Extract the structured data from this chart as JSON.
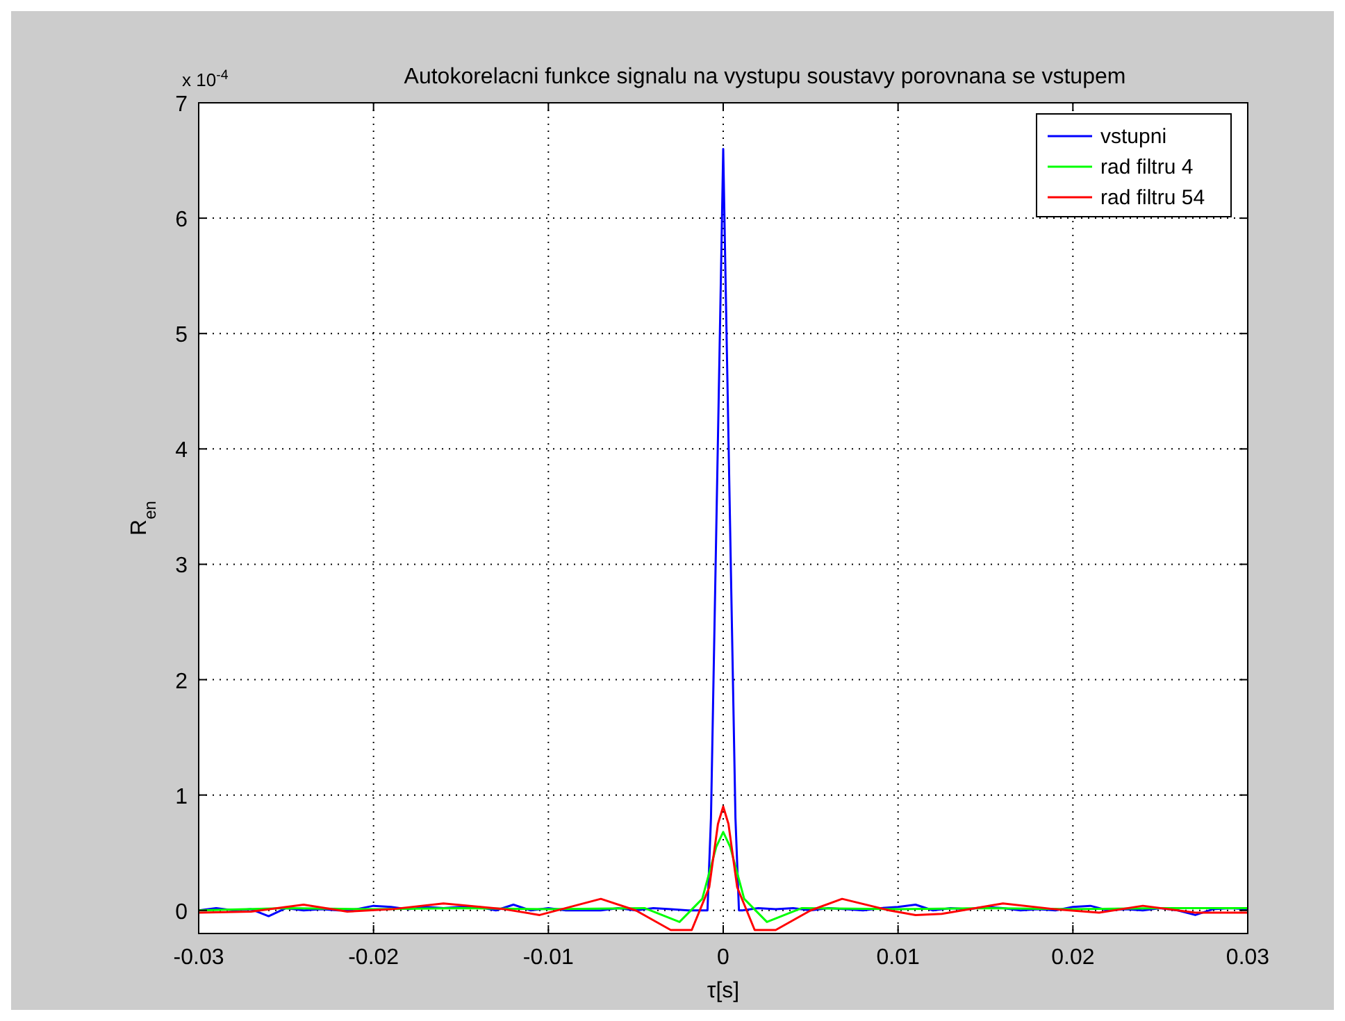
{
  "chart_data": {
    "type": "line",
    "title": "Autokorelacni funkce signalu na vystupu soustavy porovnana se vstupem",
    "xlabel": "τ[s]",
    "ylabel": "R$_{en}$",
    "annotations": [
      "x 10$^{-4}$"
    ],
    "xlim": [
      -0.03,
      0.03
    ],
    "ylim": [
      -0.2,
      7
    ],
    "xticks": [
      -0.03,
      -0.02,
      -0.01,
      0,
      0.01,
      0.02,
      0.03
    ],
    "yticks": [
      0,
      1,
      2,
      3,
      4,
      5,
      6,
      7
    ],
    "grid": true,
    "legend": "top right",
    "series": [
      {
        "name": "vstupni",
        "color": "#0000ff",
        "x": [
          -0.03,
          -0.029,
          -0.028,
          -0.027,
          -0.026,
          -0.025,
          -0.024,
          -0.023,
          -0.022,
          -0.021,
          -0.02,
          -0.019,
          -0.018,
          -0.017,
          -0.016,
          -0.015,
          -0.014,
          -0.013,
          -0.012,
          -0.011,
          -0.01,
          -0.009,
          -0.008,
          -0.007,
          -0.006,
          -0.005,
          -0.004,
          -0.003,
          -0.002,
          -0.0011,
          -0.0009,
          -0.0007,
          -0.0005,
          -0.0003,
          -0.0001,
          0,
          0.0001,
          0.0003,
          0.0005,
          0.0007,
          0.0009,
          0.0011,
          0.002,
          0.003,
          0.004,
          0.005,
          0.006,
          0.007,
          0.008,
          0.009,
          0.01,
          0.011,
          0.012,
          0.013,
          0.014,
          0.015,
          0.016,
          0.017,
          0.018,
          0.019,
          0.02,
          0.021,
          0.022,
          0.023,
          0.024,
          0.025,
          0.026,
          0.027,
          0.028,
          0.029,
          0.03
        ],
        "values": [
          0,
          0.02,
          0,
          0.01,
          -0.05,
          0.02,
          0,
          0.01,
          0,
          0.01,
          0.04,
          0.03,
          0.01,
          0.03,
          0.02,
          0.03,
          0.03,
          0,
          0.05,
          0,
          0.02,
          0,
          0,
          0,
          0.02,
          0,
          0.02,
          0.01,
          0,
          0,
          0,
          0.8,
          2.45,
          4.1,
          5.75,
          6.6,
          5.75,
          4.1,
          2.45,
          0.8,
          0,
          0,
          0.02,
          0.01,
          0.02,
          0,
          0.02,
          0.01,
          0,
          0.02,
          0.03,
          0.05,
          0,
          0.02,
          0.01,
          0.03,
          0.02,
          0,
          0.01,
          0,
          0.03,
          0.04,
          0,
          0.01,
          0,
          0.02,
          0,
          -0.04,
          0.01,
          0.02,
          0.01
        ]
      },
      {
        "name": "rad filtru 4",
        "color": "#00ff00",
        "x": [
          -0.03,
          -0.025,
          -0.02,
          -0.015,
          -0.01,
          -0.0045,
          -0.0025,
          -0.0012,
          -0.0004,
          0,
          0.0004,
          0.0012,
          0.0025,
          0.0045,
          0.01,
          0.015,
          0.02,
          0.025,
          0.03
        ],
        "values": [
          0,
          0.02,
          0.01,
          0.02,
          0.01,
          0.02,
          -0.1,
          0.1,
          0.55,
          0.68,
          0.55,
          0.1,
          -0.1,
          0.02,
          0.01,
          0.02,
          0.01,
          0.02,
          0.02
        ]
      },
      {
        "name": "rad filtru 54",
        "color": "#ff0000",
        "x": [
          -0.03,
          -0.027,
          -0.024,
          -0.0215,
          -0.019,
          -0.016,
          -0.0125,
          -0.0105,
          -0.007,
          -0.005,
          -0.003,
          -0.0018,
          -0.0008,
          -0.0003,
          0,
          0.0003,
          0.0008,
          0.0018,
          0.003,
          0.005,
          0.0068,
          0.0095,
          0.011,
          0.0125,
          0.016,
          0.019,
          0.0215,
          0.024,
          0.027,
          0.03
        ],
        "values": [
          -0.02,
          -0.01,
          0.05,
          -0.01,
          0.01,
          0.06,
          0.01,
          -0.04,
          0.1,
          0,
          -0.17,
          -0.17,
          0.2,
          0.75,
          0.9,
          0.75,
          0.2,
          -0.17,
          -0.17,
          0,
          0.1,
          0,
          -0.04,
          -0.03,
          0.06,
          0.01,
          -0.02,
          0.04,
          -0.02,
          -0.02
        ]
      }
    ]
  }
}
